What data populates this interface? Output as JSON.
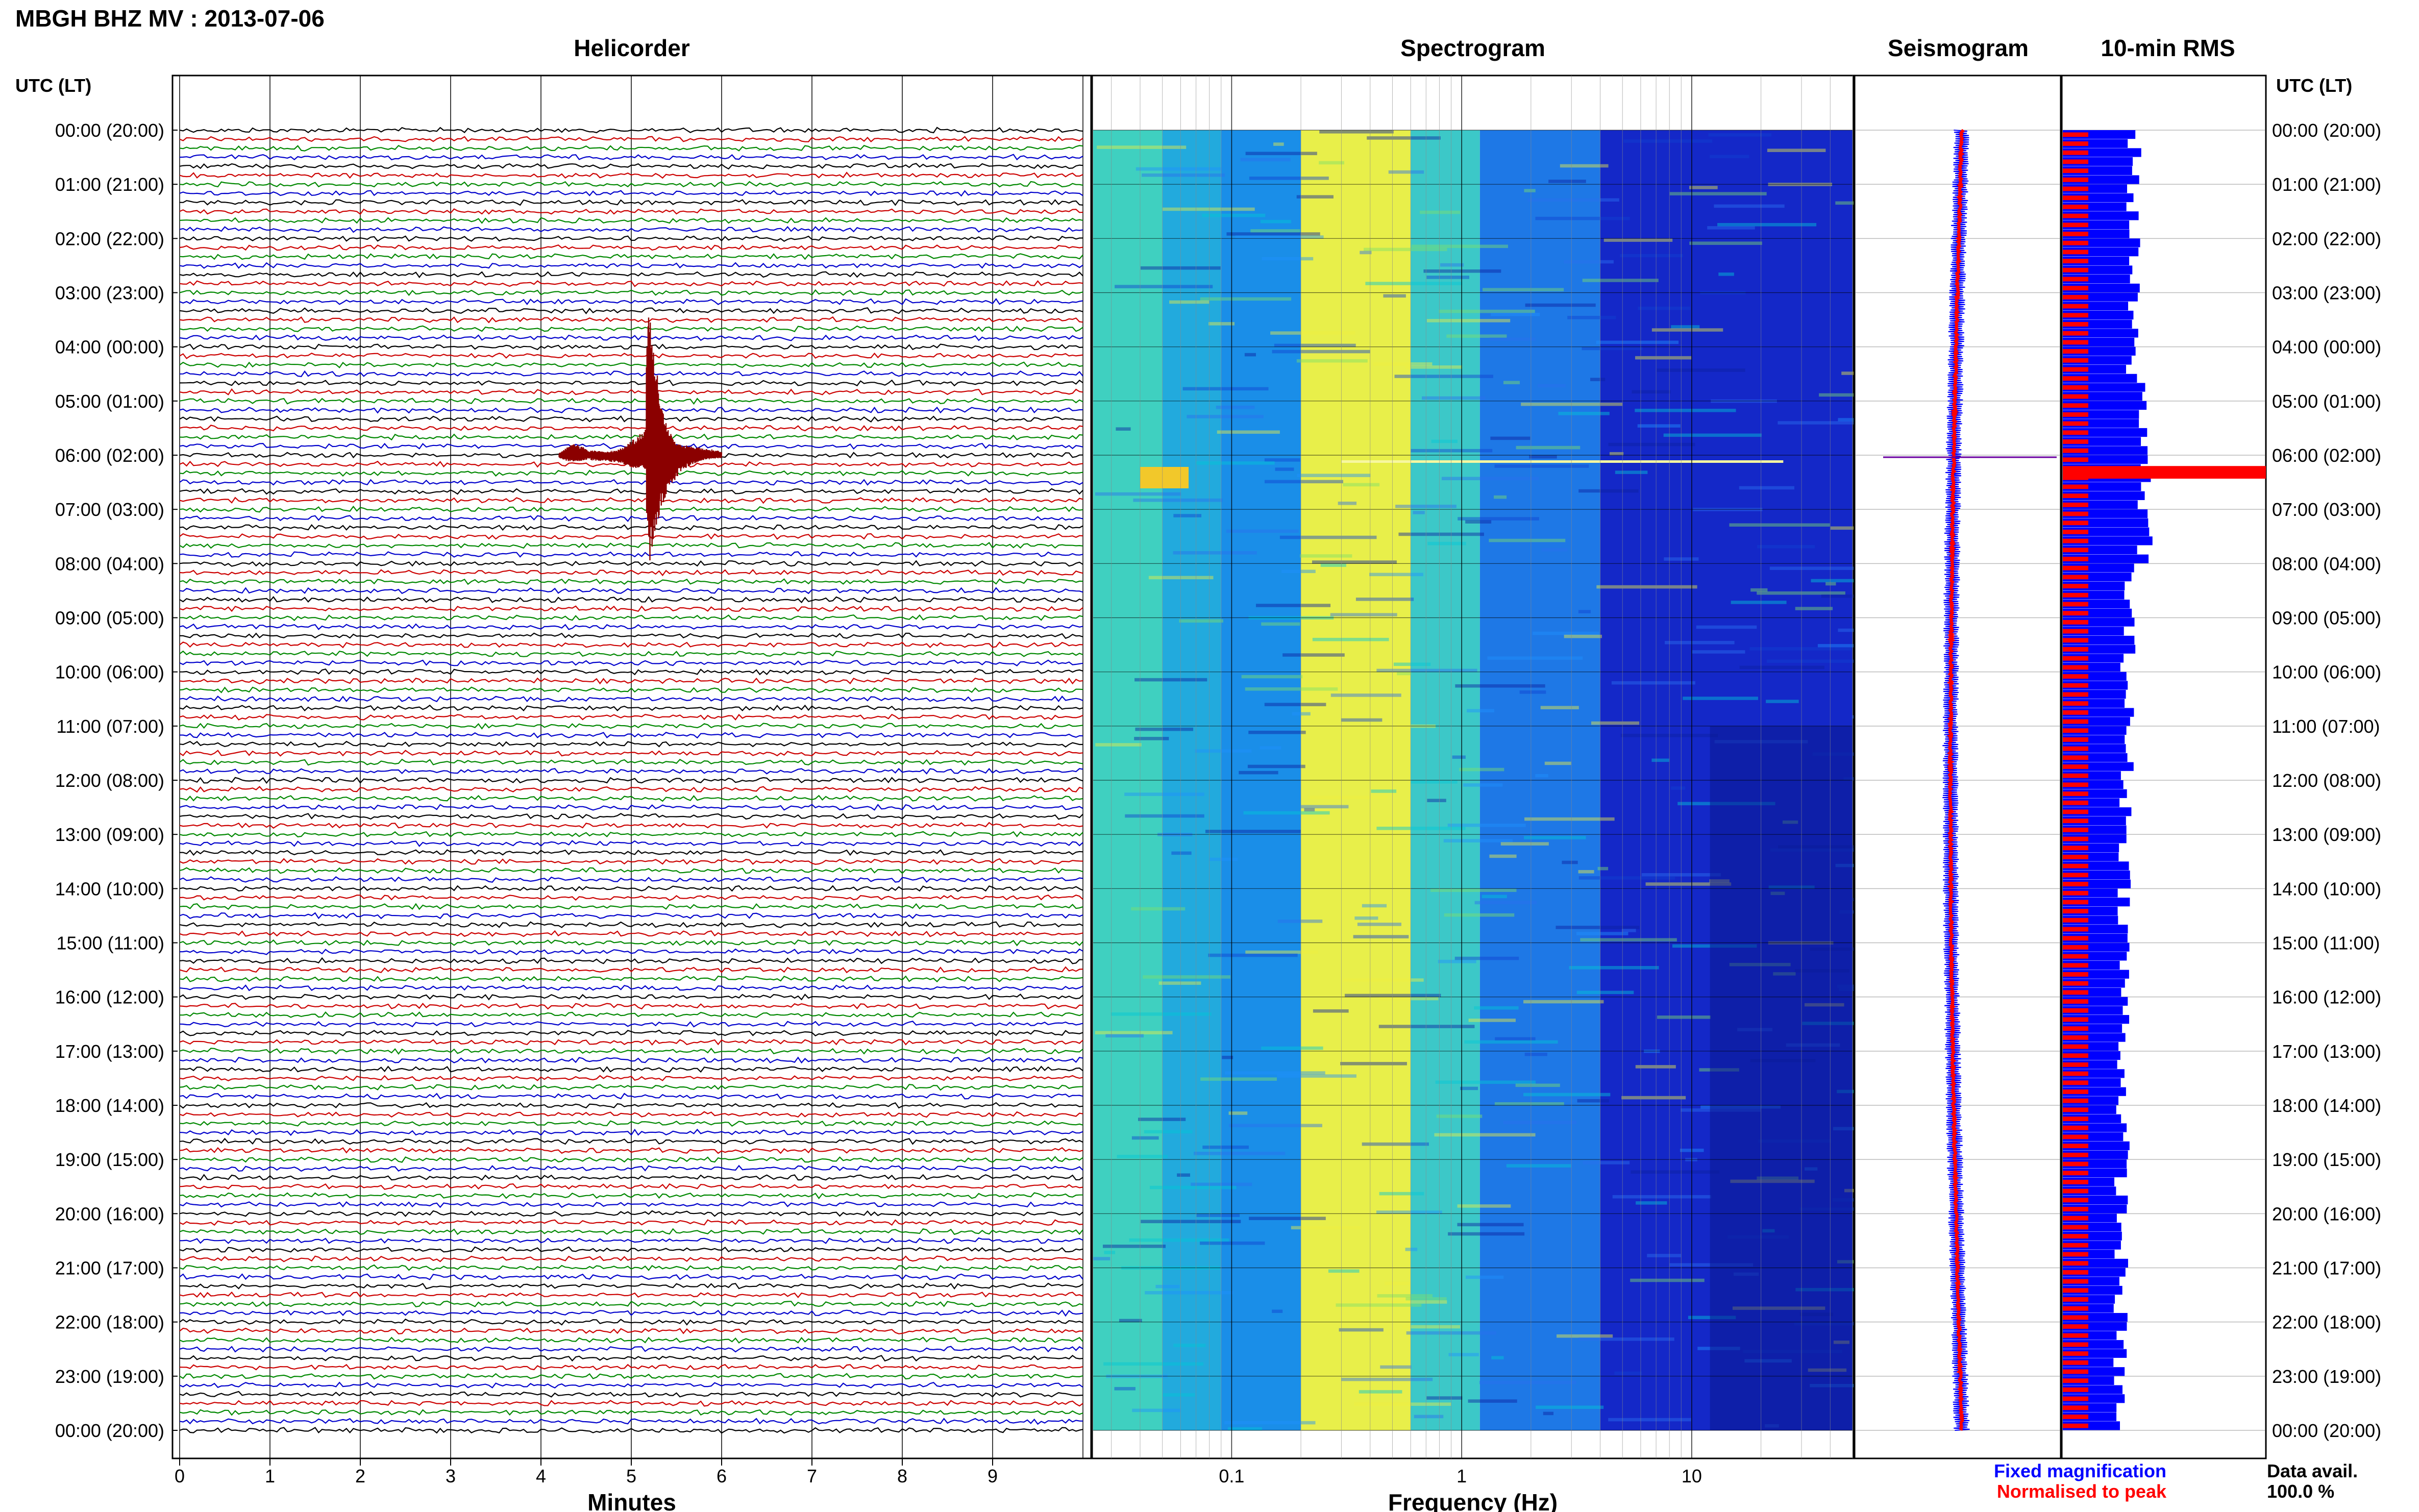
{
  "header": {
    "title": "MBGH BHZ MV : 2013-07-06"
  },
  "panels": {
    "helicorder": "Helicorder",
    "spectrogram": "Spectrogram",
    "seismogram": "Seismogram",
    "rms": "10-min RMS"
  },
  "axes": {
    "time_header_left": "UTC (LT)",
    "time_header_right": "UTC (LT)",
    "minutes_label": "Minutes",
    "frequency_label": "Frequency (Hz)"
  },
  "legend": {
    "fixed": "Fixed magnification",
    "normalised": "Normalised to peak",
    "fixed_color": "#0000ff",
    "normalised_color": "#ff0000"
  },
  "data_avail": {
    "label": "Data avail.",
    "value": "100.0 %"
  },
  "chart_data": [
    {
      "type": "line",
      "name": "helicorder",
      "xlabel": "Minutes",
      "xticks": [
        "0",
        "1",
        "2",
        "3",
        "4",
        "5",
        "6",
        "7",
        "8",
        "9"
      ],
      "xlim": [
        0,
        10
      ],
      "row_colors": [
        "#000000",
        "#cc0000",
        "#008800",
        "#0000cc"
      ],
      "row_interval_minutes": 10,
      "hour_labels": [
        "00:00 (20:00)",
        "01:00 (21:00)",
        "02:00 (22:00)",
        "03:00 (23:00)",
        "04:00 (00:00)",
        "05:00 (01:00)",
        "06:00 (02:00)",
        "07:00 (03:00)",
        "08:00 (04:00)",
        "09:00 (05:00)",
        "10:00 (06:00)",
        "11:00 (07:00)",
        "12:00 (08:00)",
        "13:00 (09:00)",
        "14:00 (10:00)",
        "15:00 (11:00)",
        "16:00 (12:00)",
        "17:00 (13:00)",
        "18:00 (14:00)",
        "19:00 (15:00)",
        "20:00 (16:00)",
        "21:00 (17:00)",
        "22:00 (18:00)",
        "23:00 (19:00)",
        "00:00 (20:00)"
      ],
      "event": {
        "start_time": "06:04 UTC",
        "peak_minute": 5.2,
        "color": "#8b0000"
      }
    },
    {
      "type": "heatmap",
      "name": "spectrogram",
      "xlabel": "Frequency (Hz)",
      "xscale": "log",
      "xlim": [
        0.025,
        50
      ],
      "xticks": [
        "0.1",
        "1",
        "10"
      ],
      "bands": [
        {
          "f_low": 0.025,
          "f_high": 0.05,
          "color": "#3fd0c0"
        },
        {
          "f_low": 0.05,
          "f_high": 0.09,
          "color": "#22aadd"
        },
        {
          "f_low": 0.09,
          "f_high": 0.2,
          "color": "#1a8ee8"
        },
        {
          "f_low": 0.2,
          "f_high": 0.6,
          "color": "#e8ef4a"
        },
        {
          "f_low": 0.6,
          "f_high": 1.2,
          "color": "#3cc8c8"
        },
        {
          "f_low": 1.2,
          "f_high": 4,
          "color": "#1e78e6"
        },
        {
          "f_low": 4,
          "f_high": 50,
          "color": "#1428c8"
        }
      ]
    },
    {
      "type": "line",
      "name": "seismogram",
      "series": [
        {
          "name": "Fixed magnification",
          "color": "#0000ff"
        },
        {
          "name": "Normalised to peak",
          "color": "#ff0000"
        }
      ]
    },
    {
      "type": "bar",
      "name": "10-min RMS",
      "orientation": "horizontal",
      "rows": 144,
      "fixed_color": "#0000ff",
      "normalised_color": "#ff0000",
      "peak_hour": 6.2
    }
  ]
}
